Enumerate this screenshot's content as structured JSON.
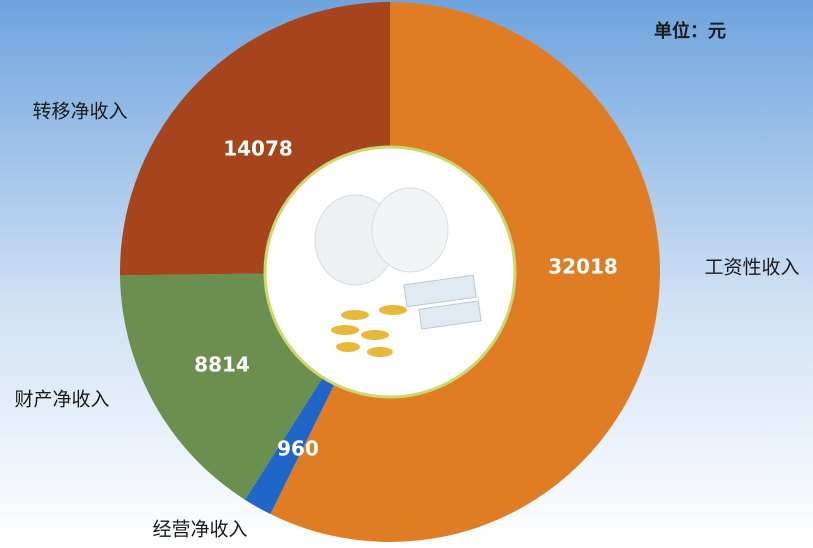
{
  "chart_data": {
    "type": "donut",
    "unit": "单位：元",
    "categories": [
      "工资性收入",
      "经营净收入",
      "财产净收入",
      "转移净收入"
    ],
    "values": [
      32018,
      960,
      8814,
      14078
    ],
    "colors": [
      "#e07d24",
      "#1f66c8",
      "#6b8f4f",
      "#a6441d"
    ]
  }
}
